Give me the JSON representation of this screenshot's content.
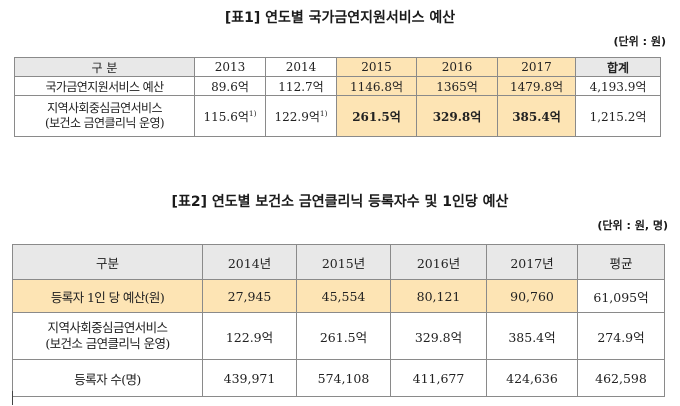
{
  "table1": {
    "title": "[표1] 연도별 국가금연지원서비스 예산",
    "unit": "(단위 : 원)",
    "headers": [
      "구 분",
      "2013",
      "2014",
      "2015",
      "2016",
      "2017",
      "합계"
    ],
    "rows": [
      {
        "label": "국가금연지원서비스 예산",
        "cells": [
          "89.6억",
          "112.7억",
          "1146.8억",
          "1365억",
          "1479.8억",
          "4,193.9억"
        ]
      },
      {
        "label_line1": "지역사회중심금연서비스",
        "label_line2": "(보건소 금연클리닉 운영)",
        "cells": [
          "115.6억",
          "122.9억",
          "261.5억",
          "329.8억",
          "385.4억",
          "1,215.2억"
        ],
        "superscript": "1)"
      }
    ],
    "highlight_color": "#fde4b4",
    "header_color": "#e8e8e8"
  },
  "table2": {
    "title": "[표2] 연도별 보건소 금연클리닉 등록자수 및 1인당 예산",
    "unit": "(단위 : 원, 명)",
    "headers": [
      "구분",
      "2014년",
      "2015년",
      "2016년",
      "2017년",
      "평균"
    ],
    "rows": [
      {
        "label": "등록자 1인 당 예산(원)",
        "cells": [
          "27,945",
          "45,554",
          "80,121",
          "90,760",
          "61,095억"
        ]
      },
      {
        "label_line1": "지역사회중심금연서비스",
        "label_line2": "(보건소 금연클리닉 운영)",
        "cells": [
          "122.9억",
          "261.5억",
          "329.8억",
          "385.4억",
          "274.9억"
        ]
      },
      {
        "label": "등록자 수(명)",
        "cells": [
          "439,971",
          "574,108",
          "411,677",
          "424,636",
          "462,598"
        ]
      }
    ]
  }
}
